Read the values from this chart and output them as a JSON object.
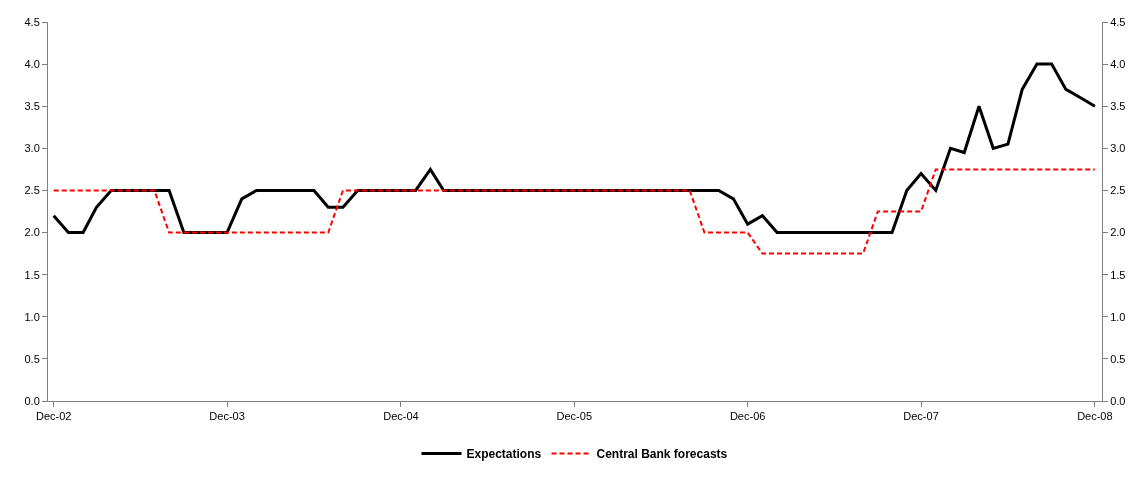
{
  "chart_data": {
    "type": "line",
    "x": [
      "2002-12",
      "2003-01",
      "2003-02",
      "2003-03",
      "2003-04",
      "2003-05",
      "2003-06",
      "2003-07",
      "2003-08",
      "2003-09",
      "2003-10",
      "2003-11",
      "2003-12",
      "2004-01",
      "2004-02",
      "2004-03",
      "2004-04",
      "2004-05",
      "2004-06",
      "2004-07",
      "2004-08",
      "2004-09",
      "2004-10",
      "2004-11",
      "2004-12",
      "2005-01",
      "2005-02",
      "2005-03",
      "2005-04",
      "2005-05",
      "2005-06",
      "2005-07",
      "2005-08",
      "2005-09",
      "2005-10",
      "2005-11",
      "2005-12",
      "2006-01",
      "2006-02",
      "2006-03",
      "2006-04",
      "2006-05",
      "2006-06",
      "2006-07",
      "2006-08",
      "2006-09",
      "2006-10",
      "2006-11",
      "2006-12",
      "2007-01",
      "2007-02",
      "2007-03",
      "2007-04",
      "2007-05",
      "2007-06",
      "2007-07",
      "2007-08",
      "2007-09",
      "2007-10",
      "2007-11",
      "2007-12",
      "2008-01",
      "2008-02",
      "2008-03",
      "2008-04",
      "2008-05",
      "2008-06",
      "2008-07",
      "2008-08",
      "2008-09",
      "2008-10",
      "2008-11",
      "2008-12"
    ],
    "series": [
      {
        "name": "Expectations",
        "color": "#000000",
        "line_style": "solid",
        "values": [
          2.2,
          2.0,
          2.0,
          2.3,
          2.5,
          2.5,
          2.5,
          2.5,
          2.5,
          2.0,
          2.0,
          2.0,
          2.0,
          2.4,
          2.5,
          2.5,
          2.5,
          2.5,
          2.5,
          2.3,
          2.3,
          2.5,
          2.5,
          2.5,
          2.5,
          2.5,
          2.75,
          2.5,
          2.5,
          2.5,
          2.5,
          2.5,
          2.5,
          2.5,
          2.5,
          2.5,
          2.5,
          2.5,
          2.5,
          2.5,
          2.5,
          2.5,
          2.5,
          2.5,
          2.5,
          2.5,
          2.5,
          2.4,
          2.1,
          2.2,
          2.0,
          2.0,
          2.0,
          2.0,
          2.0,
          2.0,
          2.0,
          2.0,
          2.0,
          2.5,
          2.7,
          2.5,
          3.0,
          2.95,
          3.5,
          3.0,
          3.05,
          3.7,
          4.0,
          4.0,
          3.7,
          3.6,
          3.5
        ]
      },
      {
        "name": "Central Bank forecasts",
        "color": "#ff0000",
        "line_style": "dashed",
        "values": [
          2.5,
          2.5,
          2.5,
          2.5,
          2.5,
          2.5,
          2.5,
          2.5,
          2.0,
          2.0,
          2.0,
          2.0,
          2.0,
          2.0,
          2.0,
          2.0,
          2.0,
          2.0,
          2.0,
          2.0,
          2.5,
          2.5,
          2.5,
          2.5,
          2.5,
          2.5,
          2.5,
          2.5,
          2.5,
          2.5,
          2.5,
          2.5,
          2.5,
          2.5,
          2.5,
          2.5,
          2.5,
          2.5,
          2.5,
          2.5,
          2.5,
          2.5,
          2.5,
          2.5,
          2.5,
          2.0,
          2.0,
          2.0,
          2.0,
          1.75,
          1.75,
          1.75,
          1.75,
          1.75,
          1.75,
          1.75,
          1.75,
          2.25,
          2.25,
          2.25,
          2.25,
          2.75,
          2.75,
          2.75,
          2.75,
          2.75,
          2.75,
          2.75,
          2.75,
          2.75,
          2.75,
          2.75,
          2.75
        ]
      }
    ],
    "xlim": [
      "2002-11-19",
      "2008-12-16"
    ],
    "xticks": [
      {
        "value": "2002-12",
        "label": "Dec-02"
      },
      {
        "value": "2003-12",
        "label": "Dec-03"
      },
      {
        "value": "2004-12",
        "label": "Dec-04"
      },
      {
        "value": "2005-12",
        "label": "Dec-05"
      },
      {
        "value": "2006-12",
        "label": "Dec-06"
      },
      {
        "value": "2007-12",
        "label": "Dec-07"
      },
      {
        "value": "2008-12",
        "label": "Dec-08"
      }
    ],
    "ylim": [
      0,
      4.5
    ],
    "yticks": [
      {
        "value": 0,
        "label": "0.0"
      },
      {
        "value": 0.5,
        "label": "0.5"
      },
      {
        "value": 1,
        "label": "1.0"
      },
      {
        "value": 1.5,
        "label": "1.5"
      },
      {
        "value": 2,
        "label": "2.0"
      },
      {
        "value": 2.5,
        "label": "2.5"
      },
      {
        "value": 3,
        "label": "3.0"
      },
      {
        "value": 3.5,
        "label": "3.5"
      },
      {
        "value": 4,
        "label": "4.0"
      },
      {
        "value": 4.5,
        "label": "4.5"
      }
    ],
    "y2lim": [
      0,
      4.5
    ],
    "y2ticks": [
      {
        "value": 0,
        "label": "0.0"
      },
      {
        "value": 0.5,
        "label": "0.5"
      },
      {
        "value": 1,
        "label": "1.0"
      },
      {
        "value": 1.5,
        "label": "1.5"
      },
      {
        "value": 2,
        "label": "2.0"
      },
      {
        "value": 2.5,
        "label": "2.5"
      },
      {
        "value": 3,
        "label": "3.0"
      },
      {
        "value": 3.5,
        "label": "3.5"
      },
      {
        "value": 4,
        "label": "4.0"
      },
      {
        "value": 4.5,
        "label": "4.5"
      }
    ],
    "grid": false,
    "legend": "bottom",
    "marker": "none"
  }
}
